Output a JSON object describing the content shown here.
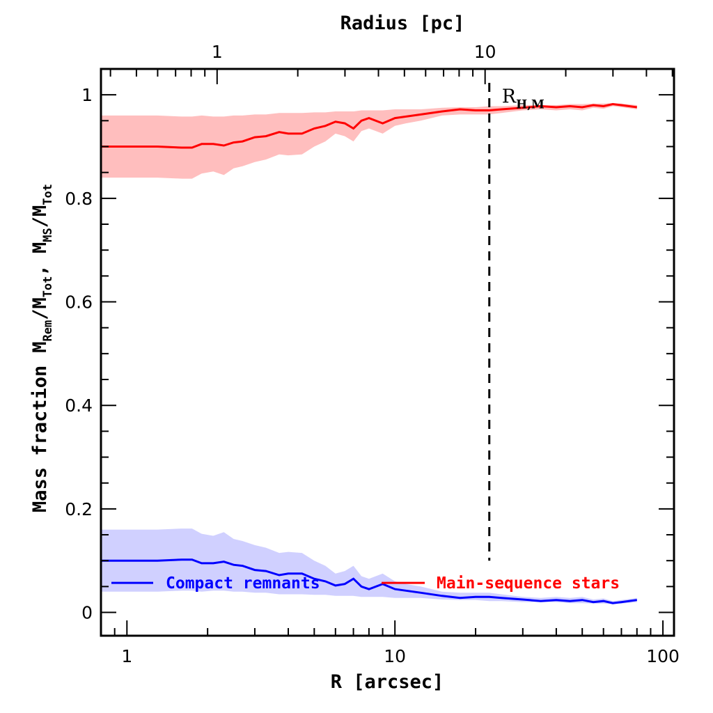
{
  "chart_data": {
    "type": "line",
    "title": "",
    "xlabel": "R [arcsec]",
    "x2label": "Radius [pc]",
    "ylabel_parts": {
      "main": "Mass fraction",
      "m1": "M",
      "m1sub": "Rem",
      "slash1": "/M",
      "tot1": "Tot",
      "sep": ",  ",
      "m2": "M",
      "m2sub": "MS",
      "slash2": "/M",
      "tot2": "Tot"
    },
    "xscale": "log",
    "xlim": [
      0.8,
      110
    ],
    "ylim": [
      -0.045,
      1.05
    ],
    "xticks": [
      1,
      10,
      100
    ],
    "xticklabels": [
      "1",
      "10",
      "100"
    ],
    "x2ticks_pc": [
      1,
      10
    ],
    "x2ticklabels": [
      "1",
      "10"
    ],
    "x2_arcsec_at_1pc": 2.17,
    "yticks": [
      0,
      0.2,
      0.4,
      0.6,
      0.8,
      1
    ],
    "yticklabels": [
      "0",
      "0.2",
      "0.4",
      "0.6",
      "0.8",
      "1"
    ],
    "grid": false,
    "vline": {
      "x": 22.5,
      "style": "dashed",
      "label": "R",
      "label_sub": "H,M"
    },
    "legend": [
      {
        "name": "Compact remnants",
        "color": "#0000ff"
      },
      {
        "name": "Main-sequence stars",
        "color": "#ff0000"
      }
    ],
    "series": [
      {
        "name": "Main-sequence stars",
        "color": "#ff0000",
        "band_color": "#ffb3b3",
        "x": [
          0.8,
          1.0,
          1.3,
          1.6,
          1.75,
          1.9,
          2.1,
          2.3,
          2.5,
          2.7,
          3.0,
          3.3,
          3.7,
          4.0,
          4.5,
          5.0,
          5.5,
          6.0,
          6.5,
          7.0,
          7.5,
          8.0,
          9.0,
          10.0,
          11.0,
          12.5,
          15.0,
          17.5,
          20.0,
          22.5,
          25.0,
          30.0,
          35.0,
          40.0,
          45.0,
          50.0,
          55.0,
          60.0,
          65.0,
          70.0,
          80.0
        ],
        "values": [
          0.9,
          0.9,
          0.9,
          0.898,
          0.898,
          0.905,
          0.905,
          0.902,
          0.908,
          0.91,
          0.918,
          0.92,
          0.928,
          0.925,
          0.925,
          0.935,
          0.94,
          0.948,
          0.945,
          0.935,
          0.95,
          0.955,
          0.945,
          0.955,
          0.958,
          0.962,
          0.968,
          0.972,
          0.97,
          0.97,
          0.972,
          0.975,
          0.978,
          0.976,
          0.978,
          0.976,
          0.98,
          0.978,
          0.982,
          0.98,
          0.976
        ],
        "upper": [
          0.96,
          0.96,
          0.96,
          0.958,
          0.958,
          0.96,
          0.958,
          0.958,
          0.96,
          0.96,
          0.962,
          0.962,
          0.965,
          0.965,
          0.965,
          0.966,
          0.966,
          0.968,
          0.968,
          0.968,
          0.97,
          0.97,
          0.97,
          0.972,
          0.972,
          0.972,
          0.975,
          0.976,
          0.976,
          0.978,
          0.978,
          0.98,
          0.98,
          0.98,
          0.982,
          0.982,
          0.983,
          0.983,
          0.984,
          0.983,
          0.98
        ],
        "lower": [
          0.84,
          0.84,
          0.84,
          0.838,
          0.838,
          0.848,
          0.852,
          0.845,
          0.858,
          0.862,
          0.87,
          0.875,
          0.885,
          0.883,
          0.885,
          0.9,
          0.91,
          0.925,
          0.92,
          0.91,
          0.93,
          0.935,
          0.925,
          0.94,
          0.945,
          0.95,
          0.96,
          0.962,
          0.962,
          0.962,
          0.965,
          0.97,
          0.972,
          0.97,
          0.972,
          0.97,
          0.975,
          0.973,
          0.978,
          0.976,
          0.972
        ]
      },
      {
        "name": "Compact remnants",
        "color": "#0000ff",
        "band_color": "#c8c8ff",
        "x": [
          0.8,
          1.0,
          1.3,
          1.6,
          1.75,
          1.9,
          2.1,
          2.3,
          2.5,
          2.7,
          3.0,
          3.3,
          3.7,
          4.0,
          4.5,
          5.0,
          5.5,
          6.0,
          6.5,
          7.0,
          7.5,
          8.0,
          9.0,
          10.0,
          11.0,
          12.5,
          15.0,
          17.5,
          20.0,
          22.5,
          25.0,
          30.0,
          35.0,
          40.0,
          45.0,
          50.0,
          55.0,
          60.0,
          65.0,
          70.0,
          80.0
        ],
        "values": [
          0.1,
          0.1,
          0.1,
          0.102,
          0.102,
          0.095,
          0.095,
          0.098,
          0.092,
          0.09,
          0.082,
          0.08,
          0.072,
          0.075,
          0.075,
          0.065,
          0.06,
          0.052,
          0.055,
          0.065,
          0.05,
          0.045,
          0.055,
          0.045,
          0.042,
          0.038,
          0.032,
          0.028,
          0.03,
          0.03,
          0.028,
          0.025,
          0.022,
          0.024,
          0.022,
          0.024,
          0.02,
          0.022,
          0.018,
          0.02,
          0.024
        ],
        "upper": [
          0.16,
          0.16,
          0.16,
          0.162,
          0.162,
          0.152,
          0.148,
          0.155,
          0.142,
          0.138,
          0.13,
          0.125,
          0.115,
          0.117,
          0.115,
          0.1,
          0.09,
          0.075,
          0.08,
          0.09,
          0.07,
          0.065,
          0.075,
          0.06,
          0.055,
          0.05,
          0.04,
          0.038,
          0.038,
          0.038,
          0.035,
          0.03,
          0.028,
          0.03,
          0.028,
          0.03,
          0.025,
          0.027,
          0.022,
          0.024,
          0.028
        ],
        "lower": [
          0.04,
          0.04,
          0.04,
          0.042,
          0.042,
          0.04,
          0.042,
          0.042,
          0.04,
          0.04,
          0.038,
          0.038,
          0.035,
          0.035,
          0.035,
          0.034,
          0.034,
          0.032,
          0.032,
          0.032,
          0.03,
          0.03,
          0.03,
          0.028,
          0.028,
          0.028,
          0.025,
          0.024,
          0.024,
          0.022,
          0.022,
          0.02,
          0.02,
          0.02,
          0.018,
          0.018,
          0.017,
          0.017,
          0.016,
          0.017,
          0.02
        ]
      }
    ]
  }
}
